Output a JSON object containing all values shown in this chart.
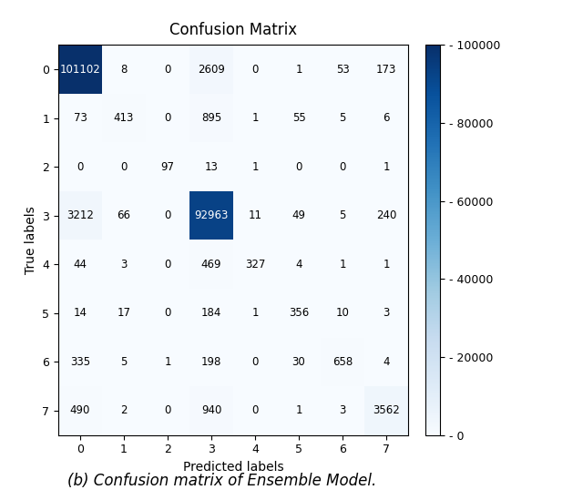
{
  "title": "Confusion Matrix",
  "xlabel": "Predicted labels",
  "ylabel": "True labels",
  "caption": "(b) Confusion matrix of Ensemble Model.",
  "matrix": [
    [
      101102,
      8,
      0,
      2609,
      0,
      1,
      53,
      173
    ],
    [
      73,
      413,
      0,
      895,
      1,
      55,
      5,
      6
    ],
    [
      0,
      0,
      97,
      13,
      1,
      0,
      0,
      1
    ],
    [
      3212,
      66,
      0,
      92963,
      11,
      49,
      5,
      240
    ],
    [
      44,
      3,
      0,
      469,
      327,
      4,
      1,
      1
    ],
    [
      14,
      17,
      0,
      184,
      1,
      356,
      10,
      3
    ],
    [
      335,
      5,
      1,
      198,
      0,
      30,
      658,
      4
    ],
    [
      490,
      2,
      0,
      940,
      0,
      1,
      3,
      3562
    ]
  ],
  "cmap": "Blues",
  "colorbar_ticks": [
    0,
    20000,
    40000,
    60000,
    80000,
    100000
  ],
  "colorbar_labels": [
    "- 0",
    "- 20000",
    "- 40000",
    "- 60000",
    "- 80000",
    "- 100000"
  ],
  "vmin": 0,
  "vmax": 100000,
  "tick_labels": [
    "0",
    "1",
    "2",
    "3",
    "4",
    "5",
    "6",
    "7"
  ],
  "text_threshold": 50000,
  "high_color": "#ffffff",
  "low_color": "#000000",
  "caption_fontsize": 12,
  "title_fontsize": 12,
  "label_fontsize": 10,
  "tick_fontsize": 9,
  "annot_fontsize": 8.5,
  "bg_color": "#ffffff"
}
